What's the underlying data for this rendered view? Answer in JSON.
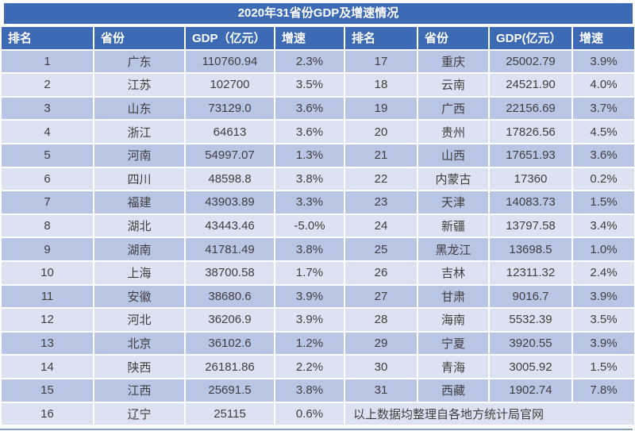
{
  "title": "2020年31省份GDP及增速情况",
  "headers": [
    "排名",
    "省份",
    "GDP（亿元）",
    "增速",
    "排名",
    "省份",
    "GDP(亿元）",
    "增速"
  ],
  "footer_note": "以上数据均整理自各地方统计局官网",
  "colors": {
    "header_blue": "#3D6AB5",
    "band_dark": "#B9C5E4",
    "band_light": "#DCE2F1",
    "text_dark": "#3F3F3F",
    "bottom_line": "#8A9BB8",
    "header_text": "#FFFFFF"
  },
  "chart_data": {
    "type": "table",
    "title": "2020年31省份GDP及增速情况",
    "columns": [
      "排名",
      "省份",
      "GDP（亿元）",
      "增速"
    ],
    "rows": [
      [
        "1",
        "广东",
        "110760.94",
        "2.3%"
      ],
      [
        "2",
        "江苏",
        "102700",
        "3.5%"
      ],
      [
        "3",
        "山东",
        "73129.0",
        "3.6%"
      ],
      [
        "4",
        "浙江",
        "64613",
        "3.6%"
      ],
      [
        "5",
        "河南",
        "54997.07",
        "1.3%"
      ],
      [
        "6",
        "四川",
        "48598.8",
        "3.8%"
      ],
      [
        "7",
        "福建",
        "43903.89",
        "3.3%"
      ],
      [
        "8",
        "湖北",
        "43443.46",
        "-5.0%"
      ],
      [
        "9",
        "湖南",
        "41781.49",
        "3.8%"
      ],
      [
        "10",
        "上海",
        "38700.58",
        "1.7%"
      ],
      [
        "11",
        "安徽",
        "38680.6",
        "3.9%"
      ],
      [
        "12",
        "河北",
        "36206.9",
        "3.9%"
      ],
      [
        "13",
        "北京",
        "36102.6",
        "1.2%"
      ],
      [
        "14",
        "陕西",
        "26181.86",
        "2.2%"
      ],
      [
        "15",
        "江西",
        "25691.5",
        "3.8%"
      ],
      [
        "16",
        "辽宁",
        "25115",
        "0.6%"
      ],
      [
        "17",
        "重庆",
        "25002.79",
        "3.9%"
      ],
      [
        "18",
        "云南",
        "24521.90",
        "4.0%"
      ],
      [
        "19",
        "广西",
        "22156.69",
        "3.7%"
      ],
      [
        "20",
        "贵州",
        "17826.56",
        "4.5%"
      ],
      [
        "21",
        "山西",
        "17651.93",
        "3.6%"
      ],
      [
        "22",
        "内蒙古",
        "17360",
        "0.2%"
      ],
      [
        "23",
        "天津",
        "14083.73",
        "1.5%"
      ],
      [
        "24",
        "新疆",
        "13797.58",
        "3.4%"
      ],
      [
        "25",
        "黑龙江",
        "13698.5",
        "1.0%"
      ],
      [
        "26",
        "吉林",
        "12311.32",
        "2.4%"
      ],
      [
        "27",
        "甘肃",
        "9016.7",
        "3.9%"
      ],
      [
        "28",
        "海南",
        "5532.39",
        "3.5%"
      ],
      [
        "29",
        "宁夏",
        "3920.55",
        "3.9%"
      ],
      [
        "30",
        "青海",
        "3005.92",
        "1.5%"
      ],
      [
        "31",
        "西藏",
        "1902.74",
        "7.8%"
      ]
    ]
  }
}
